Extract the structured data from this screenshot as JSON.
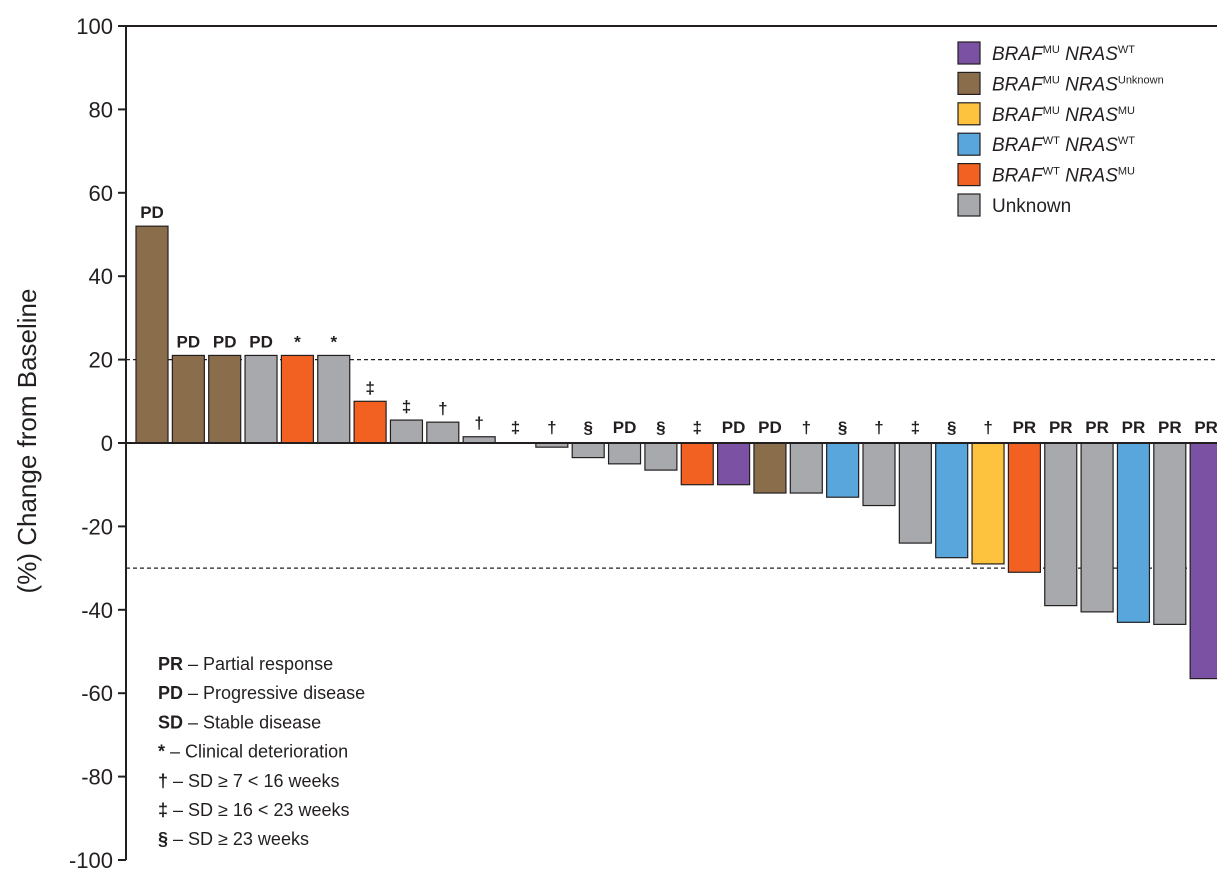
{
  "chart_data": {
    "type": "bar",
    "ylabel": "(%) Change from Baseline",
    "ylim": [
      -100,
      100
    ],
    "yticks": [
      100,
      80,
      60,
      40,
      20,
      0,
      -20,
      -40,
      -60,
      -80,
      -100
    ],
    "reference_lines": [
      20,
      -30
    ],
    "legend_position": "top-right",
    "legend": [
      {
        "key": "braf_mu_nras_wt",
        "gene1": "BRAF",
        "sup1": "MU",
        "gene2": "NRAS",
        "sup2": "WT",
        "color": "#7b52a3"
      },
      {
        "key": "braf_mu_nras_unknown",
        "gene1": "BRAF",
        "sup1": "MU",
        "gene2": "NRAS",
        "sup2": "Unknown",
        "color": "#8a6d4b"
      },
      {
        "key": "braf_mu_nras_mu",
        "gene1": "BRAF",
        "sup1": "MU",
        "gene2": "NRAS",
        "sup2": "MU",
        "color": "#fdc33f"
      },
      {
        "key": "braf_wt_nras_wt",
        "gene1": "BRAF",
        "sup1": "WT",
        "gene2": "NRAS",
        "sup2": "WT",
        "color": "#58a6dc"
      },
      {
        "key": "braf_wt_nras_mu",
        "gene1": "BRAF",
        "sup1": "WT",
        "gene2": "NRAS",
        "sup2": "MU",
        "color": "#f26122"
      },
      {
        "key": "unknown",
        "label": "Unknown",
        "color": "#a7a9ac"
      }
    ],
    "bars": [
      {
        "value": 52,
        "group": "braf_mu_nras_unknown",
        "label": "PD"
      },
      {
        "value": 21,
        "group": "braf_mu_nras_unknown",
        "label": "PD"
      },
      {
        "value": 21,
        "group": "braf_mu_nras_unknown",
        "label": "PD"
      },
      {
        "value": 21,
        "group": "unknown",
        "label": "PD"
      },
      {
        "value": 21,
        "group": "braf_wt_nras_mu",
        "label": "*"
      },
      {
        "value": 21,
        "group": "unknown",
        "label": "*"
      },
      {
        "value": 10,
        "group": "braf_wt_nras_mu",
        "label": "‡"
      },
      {
        "value": 5.5,
        "group": "unknown",
        "label": "‡"
      },
      {
        "value": 5,
        "group": "unknown",
        "label": "†"
      },
      {
        "value": 1.5,
        "group": "unknown",
        "label": "†"
      },
      {
        "value": 0,
        "group": "unknown",
        "label": "‡"
      },
      {
        "value": -1,
        "group": "unknown",
        "label": "†"
      },
      {
        "value": -3.5,
        "group": "unknown",
        "label": "§"
      },
      {
        "value": -5,
        "group": "unknown",
        "label": "PD"
      },
      {
        "value": -6.5,
        "group": "unknown",
        "label": "§"
      },
      {
        "value": -10,
        "group": "braf_wt_nras_mu",
        "label": "‡"
      },
      {
        "value": -10,
        "group": "braf_mu_nras_wt",
        "label": "PD"
      },
      {
        "value": -12,
        "group": "braf_mu_nras_unknown",
        "label": "PD"
      },
      {
        "value": -12,
        "group": "unknown",
        "label": "†"
      },
      {
        "value": -13,
        "group": "braf_wt_nras_wt",
        "label": "§"
      },
      {
        "value": -15,
        "group": "unknown",
        "label": "†"
      },
      {
        "value": -24,
        "group": "unknown",
        "label": "‡"
      },
      {
        "value": -27.5,
        "group": "braf_wt_nras_wt",
        "label": "§"
      },
      {
        "value": -29,
        "group": "braf_mu_nras_mu",
        "label": "†"
      },
      {
        "value": -31,
        "group": "braf_wt_nras_mu",
        "label": "PR"
      },
      {
        "value": -39,
        "group": "unknown",
        "label": "PR"
      },
      {
        "value": -40.5,
        "group": "unknown",
        "label": "PR"
      },
      {
        "value": -43,
        "group": "braf_wt_nras_wt",
        "label": "PR"
      },
      {
        "value": -43.5,
        "group": "unknown",
        "label": "PR"
      },
      {
        "value": -56.5,
        "group": "braf_mu_nras_wt",
        "label": "PR"
      }
    ],
    "notes": [
      {
        "symbol": "PR",
        "text": "– Partial response"
      },
      {
        "symbol": "PD",
        "text": "– Progressive disease"
      },
      {
        "symbol": "SD",
        "text": "– Stable disease"
      },
      {
        "symbol": "*",
        "text": "– Clinical deterioration"
      },
      {
        "symbol": "†",
        "text": "– SD ≥ 7 < 16 weeks"
      },
      {
        "symbol": "‡",
        "text": "– SD ≥ 16 < 23 weeks"
      },
      {
        "symbol": "§",
        "text": "– SD ≥ 23 weeks"
      }
    ]
  }
}
